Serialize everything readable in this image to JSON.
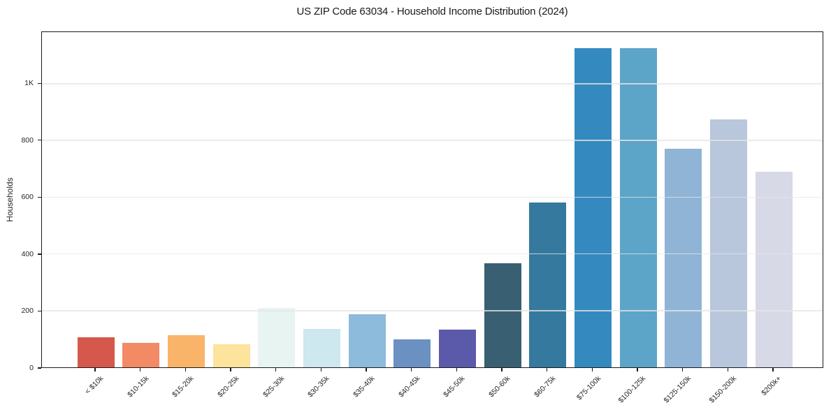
{
  "figure": {
    "background": "#ffffff"
  },
  "chart_data": {
    "type": "bar",
    "title": "US ZIP Code 63034 - Household Income Distribution (2024)",
    "xlabel": "",
    "ylabel": "Households",
    "categories": [
      "< $10k",
      "$10-15k",
      "$15-20k",
      "$20-25k",
      "$25-30k",
      "$30-35k",
      "$35-40k",
      "$40-45k",
      "$45-50k",
      "$50-60k",
      "$60-75k",
      "$75-100k",
      "$100-125k",
      "$125-150k",
      "$150-200k",
      "$200k+"
    ],
    "values": [
      105,
      85,
      114,
      82,
      210,
      135,
      188,
      99,
      132,
      367,
      580,
      1126,
      1126,
      772,
      875,
      690
    ],
    "bar_colors": [
      "#d6584c",
      "#f28b65",
      "#f9b469",
      "#fce49c",
      "#e8f4f1",
      "#cde8ee",
      "#8dbbdb",
      "#6b91c3",
      "#5b5aaa",
      "#395f72",
      "#35799e",
      "#348abf",
      "#5ca4c8",
      "#8fb4d5",
      "#b8c7dc",
      "#d8d9e6"
    ],
    "ylim": [
      0,
      1182
    ],
    "yticks": {
      "values": [
        0,
        200,
        400,
        600,
        800,
        1000
      ],
      "labels": [
        "0",
        "200",
        "400",
        "600",
        "800",
        "1K"
      ]
    },
    "grid": "horizontal",
    "legend": "none",
    "plot_background": "#ffffff",
    "spine_color": "#1a1a1a",
    "gridline_color": "#e5e5e5",
    "text_color": "#262626"
  }
}
